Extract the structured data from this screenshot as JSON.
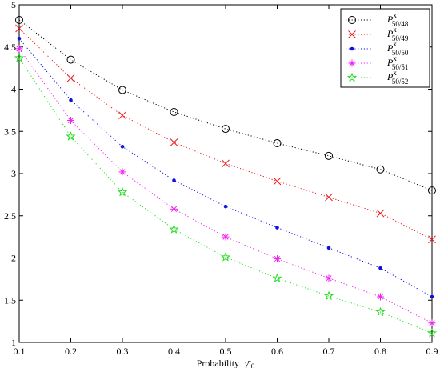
{
  "chart_data": {
    "type": "line",
    "xlabel": "Probability",
    "xlabel_symbol": "γ̄",
    "xlabel_subscript": "0",
    "xlim": [
      0.1,
      0.9
    ],
    "ylim": [
      1,
      5
    ],
    "xticks": [
      "0.1",
      "0.2",
      "0.3",
      "0.4",
      "0.5",
      "0.6",
      "0.7",
      "0.8",
      "0.9"
    ],
    "yticks": [
      "1",
      "1.5",
      "2",
      "2.5",
      "3",
      "3.5",
      "4",
      "4.5",
      "5"
    ],
    "grid": false,
    "legend_position": "top-right",
    "x": [
      0.1,
      0.2,
      0.3,
      0.4,
      0.5,
      0.6,
      0.7,
      0.8,
      0.9
    ],
    "series": [
      {
        "name": "P",
        "sup": "x",
        "sub": "50/48",
        "marker": "circle",
        "color": "#000000",
        "values": [
          4.82,
          4.35,
          3.99,
          3.73,
          3.53,
          3.36,
          3.21,
          3.05,
          2.8
        ]
      },
      {
        "name": "P",
        "sup": "x",
        "sub": "50/49",
        "marker": "x",
        "color": "#e8191b",
        "values": [
          4.72,
          4.13,
          3.69,
          3.37,
          3.12,
          2.91,
          2.72,
          2.53,
          2.22
        ]
      },
      {
        "name": "P",
        "sup": "x",
        "sub": "50/50",
        "marker": "dot",
        "color": "#1010e0",
        "values": [
          4.6,
          3.87,
          3.32,
          2.92,
          2.61,
          2.36,
          2.12,
          1.88,
          1.54
        ]
      },
      {
        "name": "P",
        "sup": "x",
        "sub": "50/51",
        "marker": "asterisk",
        "color": "#ee22ee",
        "values": [
          4.48,
          3.63,
          3.02,
          2.58,
          2.25,
          1.99,
          1.76,
          1.54,
          1.23
        ]
      },
      {
        "name": "P",
        "sup": "x",
        "sub": "50/52",
        "marker": "star",
        "color": "#22dd22",
        "values": [
          4.37,
          3.44,
          2.78,
          2.34,
          2.01,
          1.76,
          1.55,
          1.36,
          1.11
        ]
      }
    ]
  }
}
